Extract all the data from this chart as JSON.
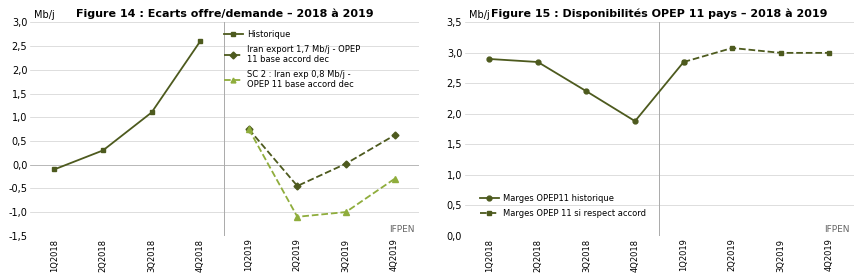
{
  "fig14": {
    "title": "Figure 14 : Ecarts offre/demande – 2018 à 2019",
    "ylabel": "Mb/j",
    "ylim": [
      -1.5,
      3.0
    ],
    "yticks": [
      -1.5,
      -1.0,
      -0.5,
      0.0,
      0.5,
      1.0,
      1.5,
      2.0,
      2.5,
      3.0
    ],
    "categories": [
      "1Q2018",
      "2Q2018",
      "3Q2018",
      "4Q2018",
      "1Q2019",
      "2Q2019",
      "3Q2019",
      "4Q2019"
    ],
    "historique": [
      -0.1,
      0.3,
      1.1,
      2.6,
      null,
      null,
      null,
      null
    ],
    "iran17": [
      null,
      null,
      null,
      null,
      0.75,
      -0.45,
      0.02,
      0.62
    ],
    "sc2": [
      null,
      null,
      null,
      null,
      0.75,
      -1.1,
      -1.0,
      -0.3
    ],
    "color_hist": "#4d5a1e",
    "color_iran17": "#4d5a1e",
    "color_sc2": "#8fad3c",
    "legend_hist": "Historique",
    "legend_iran17": "Iran export 1,7 Mb/j - OPEP\n11 base accord dec",
    "legend_sc2": "SC 2 : Iran exp 0,8 Mb/j -\nOPEP 11 base accord dec",
    "ifpen": "IFPEN"
  },
  "fig15": {
    "title": "Figure 15 : Disponibilités OPEP 11 pays – 2018 à 2019",
    "ylabel": "Mb/j",
    "ylim": [
      0.0,
      3.5
    ],
    "yticks": [
      0.0,
      0.5,
      1.0,
      1.5,
      2.0,
      2.5,
      3.0,
      3.5
    ],
    "categories": [
      "1Q2018",
      "2Q2018",
      "3Q2018",
      "4Q2018",
      "1Q2019",
      "2Q2019",
      "3Q2019",
      "4Q2019"
    ],
    "historique": [
      2.9,
      2.85,
      2.37,
      1.88,
      2.85,
      null,
      null,
      null
    ],
    "accord": [
      null,
      null,
      null,
      null,
      2.85,
      3.08,
      3.0,
      3.0
    ],
    "color_hist": "#4d5a1e",
    "color_accord": "#4d5a1e",
    "legend_hist": "Marges OPEP11 historique",
    "legend_accord": "Marges OPEP 11 si respect accord",
    "ifpen": "IFPEN"
  }
}
